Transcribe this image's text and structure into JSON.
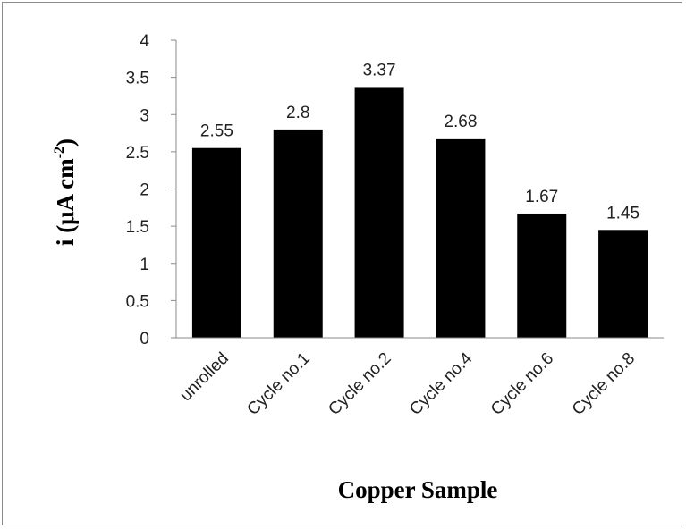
{
  "chart_data": {
    "type": "bar",
    "title": "",
    "xlabel": "Copper Sample",
    "ylabel": {
      "main": "i (μA cm",
      "superscript": "-2",
      "close": ")"
    },
    "categories": [
      "unrolled",
      "Cycle no.1",
      "Cycle no.2",
      "Cycle no.4",
      "Cycle no.6",
      "Cycle no.8"
    ],
    "values": [
      2.55,
      2.8,
      3.37,
      2.68,
      1.67,
      1.45
    ],
    "data_labels": [
      "2.55",
      "2.8",
      "3.37",
      "2.68",
      "1.67",
      "1.45"
    ],
    "ylim": [
      0,
      4
    ],
    "yticks": [
      "0",
      "0.5",
      "1",
      "1.5",
      "2",
      "2.5",
      "3",
      "3.5",
      "4"
    ],
    "grid": false,
    "legend": "none",
    "bar_color": "#000000",
    "tick_label_color": "#222222"
  }
}
